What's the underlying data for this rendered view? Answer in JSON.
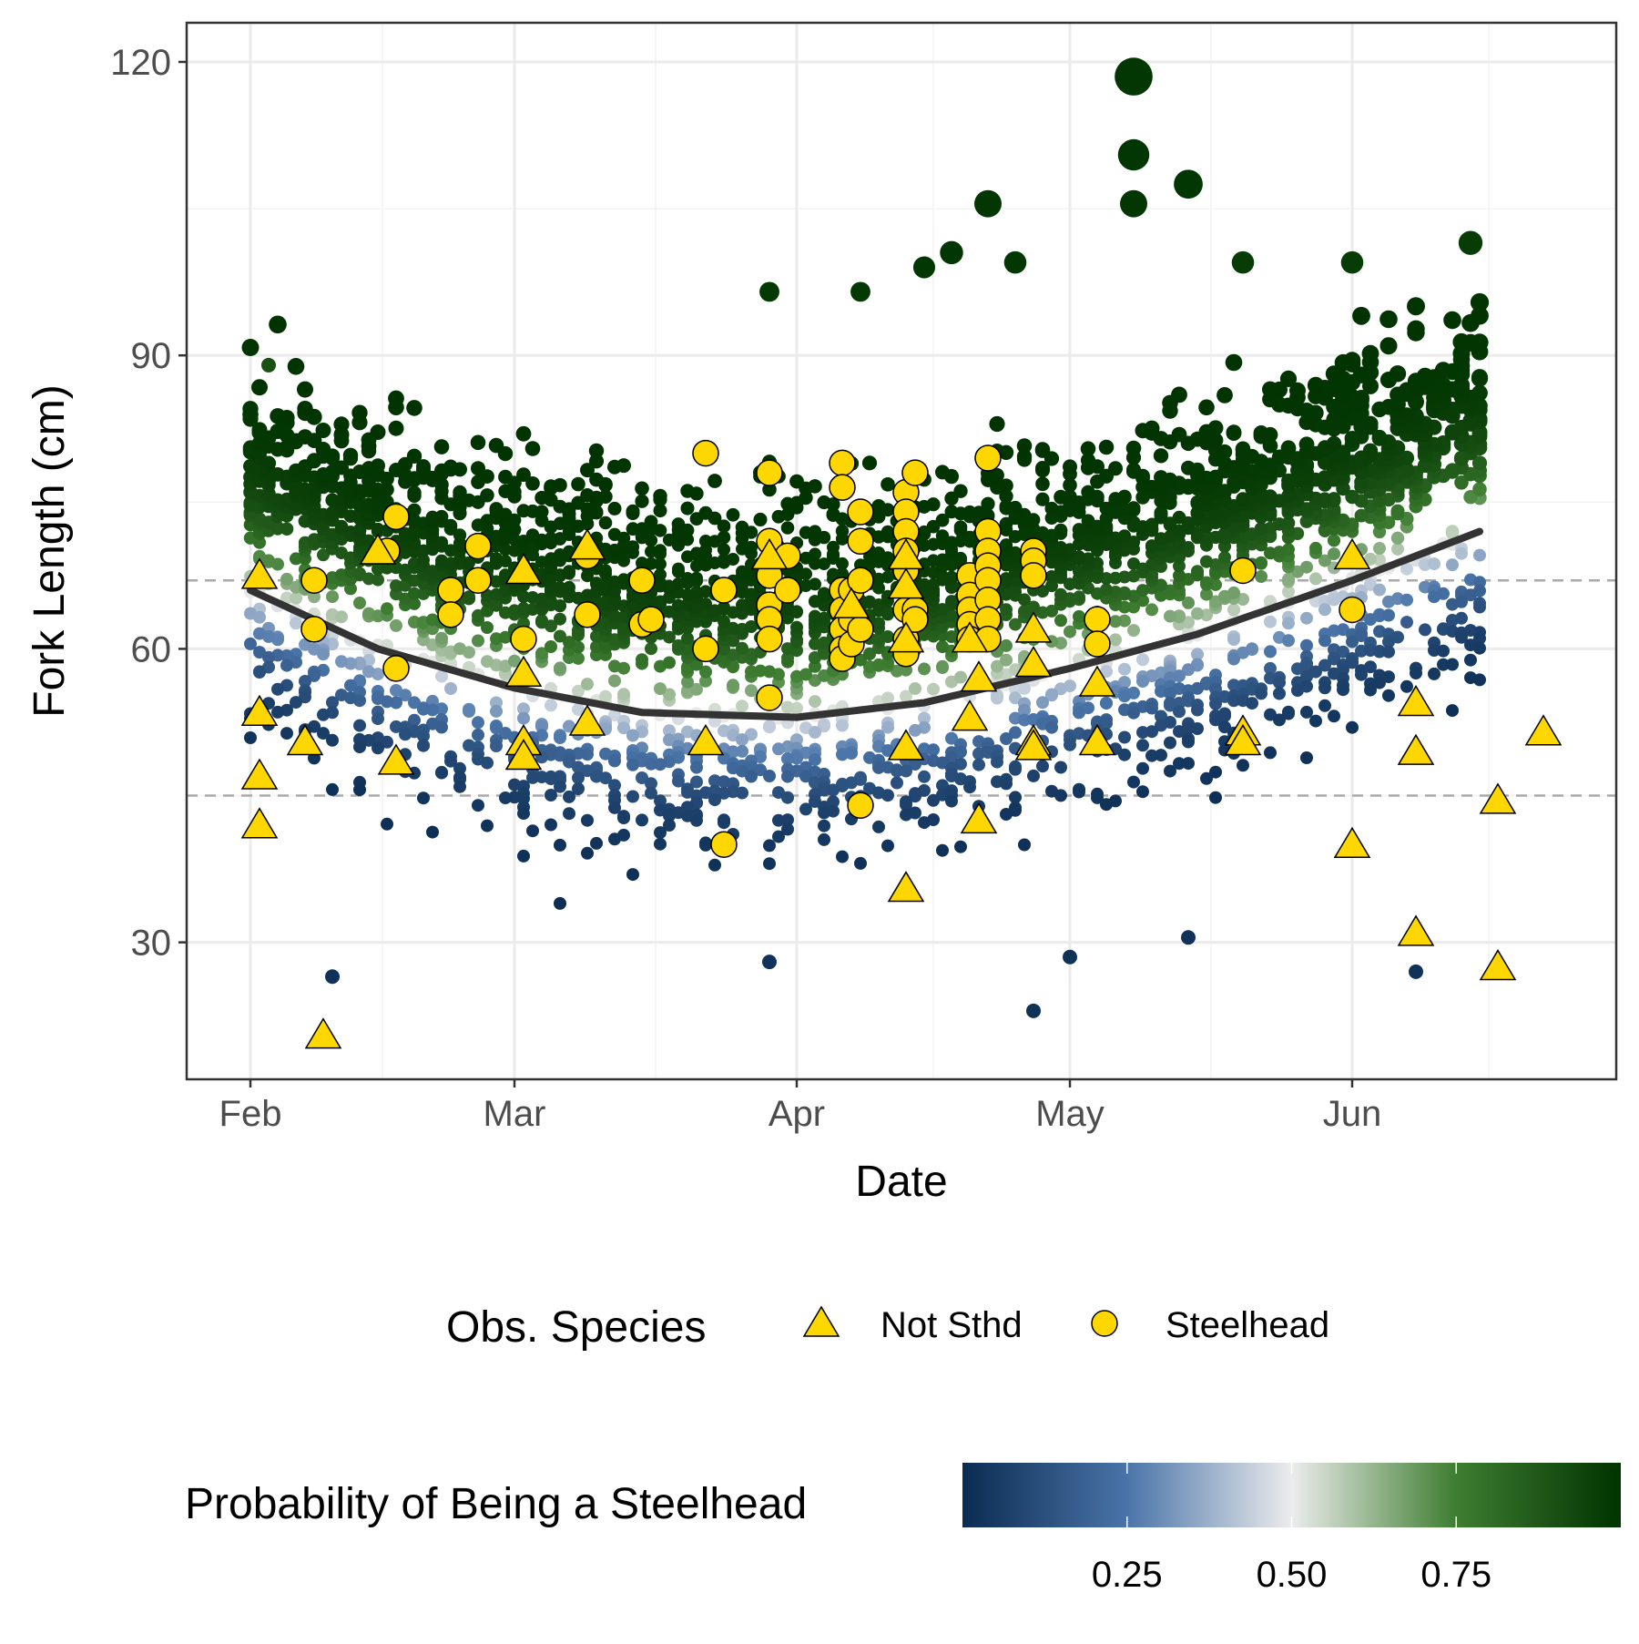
{
  "chart_data": {
    "type": "scatter",
    "title": "",
    "xlabel": "Date",
    "ylabel": "Fork Length (cm)",
    "x_axis": {
      "type": "date",
      "range": [
        "2020-01-25",
        "2020-06-30"
      ],
      "ticks": [
        {
          "value": "2020-02-01",
          "label": "Feb"
        },
        {
          "value": "2020-03-01",
          "label": "Mar"
        },
        {
          "value": "2020-04-01",
          "label": "Apr"
        },
        {
          "value": "2020-05-01",
          "label": "May"
        },
        {
          "value": "2020-06-01",
          "label": "Jun"
        }
      ]
    },
    "y_axis": {
      "range": [
        16,
        124
      ],
      "ticks": [
        30,
        60,
        90,
        120
      ]
    },
    "grid": true,
    "reference_lines": [
      {
        "y": 67,
        "style": "dashed",
        "color": "#aaaaaa"
      },
      {
        "y": 45,
        "style": "dashed",
        "color": "#aaaaaa"
      }
    ],
    "fitted_curve": {
      "color": "#333333",
      "x": [
        "2020-02-01",
        "2020-02-15",
        "2020-03-01",
        "2020-03-15",
        "2020-04-01",
        "2020-04-15",
        "2020-05-01",
        "2020-05-15",
        "2020-06-01",
        "2020-06-15"
      ],
      "y": [
        66,
        60,
        56,
        53.5,
        53,
        54.5,
        58,
        61.5,
        67,
        72
      ]
    },
    "background_points": {
      "description_series": "Predicted individuals",
      "color_scale": {
        "title": "Probability of Being a Steelhead",
        "stops": [
          {
            "value": 0.0,
            "color": "#0b2c52"
          },
          {
            "value": 0.25,
            "color": "#4a74a8"
          },
          {
            "value": 0.5,
            "color": "#ececec"
          },
          {
            "value": 0.75,
            "color": "#3e7d31"
          },
          {
            "value": 1.0,
            "color": "#003300"
          }
        ],
        "ticks": [
          0.25,
          0.5,
          0.75
        ],
        "tick_labels": [
          "0.25",
          "0.50",
          "0.75"
        ]
      },
      "samples": [
        {
          "date": "2020-05-08",
          "length": 118.5,
          "prob": 0.99
        },
        {
          "date": "2020-05-08",
          "length": 110.5,
          "prob": 0.99
        },
        {
          "date": "2020-05-08",
          "length": 105.5,
          "prob": 0.99
        },
        {
          "date": "2020-05-14",
          "length": 107.5,
          "prob": 0.99
        },
        {
          "date": "2020-04-22",
          "length": 105.5,
          "prob": 0.99
        },
        {
          "date": "2020-04-18",
          "length": 100.5,
          "prob": 0.99
        },
        {
          "date": "2020-04-15",
          "length": 99,
          "prob": 0.99
        },
        {
          "date": "2020-04-25",
          "length": 99.5,
          "prob": 0.99
        },
        {
          "date": "2020-04-08",
          "length": 96.5,
          "prob": 0.98
        },
        {
          "date": "2020-03-29",
          "length": 96.5,
          "prob": 0.98
        },
        {
          "date": "2020-06-01",
          "length": 99.5,
          "prob": 0.97
        },
        {
          "date": "2020-06-14",
          "length": 101.5,
          "prob": 0.97
        },
        {
          "date": "2020-05-20",
          "length": 99.5,
          "prob": 0.97
        },
        {
          "date": "2020-02-03",
          "length": 89,
          "prob": 0.9
        },
        {
          "date": "2020-02-10",
          "length": 26.5,
          "prob": 0.02
        },
        {
          "date": "2020-04-27",
          "length": 23,
          "prob": 0.02
        },
        {
          "date": "2020-06-08",
          "length": 27,
          "prob": 0.02
        },
        {
          "date": "2020-03-29",
          "length": 28,
          "prob": 0.02
        },
        {
          "date": "2020-05-01",
          "length": 28.5,
          "prob": 0.02
        },
        {
          "date": "2020-05-14",
          "length": 30.5,
          "prob": 0.02
        }
      ]
    },
    "legend": {
      "title": "Obs. Species",
      "position": "bottom",
      "entries": [
        {
          "label": "Not Sthd",
          "shape": "triangle",
          "fill": "#ffd700"
        },
        {
          "label": "Steelhead",
          "shape": "circle",
          "fill": "#ffd700"
        }
      ]
    },
    "series": [
      {
        "name": "Steelhead",
        "shape": "circle",
        "fill": "#ffd700",
        "points": [
          {
            "x": "2020-02-08",
            "y": 67
          },
          {
            "x": "2020-02-08",
            "y": 62
          },
          {
            "x": "2020-02-17",
            "y": 73.5
          },
          {
            "x": "2020-02-16",
            "y": 70
          },
          {
            "x": "2020-02-17",
            "y": 58
          },
          {
            "x": "2020-02-23",
            "y": 66
          },
          {
            "x": "2020-02-23",
            "y": 63.5
          },
          {
            "x": "2020-02-26",
            "y": 70.5
          },
          {
            "x": "2020-02-26",
            "y": 67
          },
          {
            "x": "2020-03-02",
            "y": 61
          },
          {
            "x": "2020-03-09",
            "y": 69.5
          },
          {
            "x": "2020-03-09",
            "y": 63.5
          },
          {
            "x": "2020-03-15",
            "y": 67
          },
          {
            "x": "2020-03-15",
            "y": 62.5
          },
          {
            "x": "2020-03-16",
            "y": 63
          },
          {
            "x": "2020-03-22",
            "y": 80
          },
          {
            "x": "2020-03-22",
            "y": 60
          },
          {
            "x": "2020-03-24",
            "y": 66
          },
          {
            "x": "2020-03-24",
            "y": 40
          },
          {
            "x": "2020-03-29",
            "y": 78
          },
          {
            "x": "2020-03-29",
            "y": 71
          },
          {
            "x": "2020-03-29",
            "y": 67.5
          },
          {
            "x": "2020-03-29",
            "y": 64.5
          },
          {
            "x": "2020-03-29",
            "y": 63
          },
          {
            "x": "2020-03-29",
            "y": 61
          },
          {
            "x": "2020-03-29",
            "y": 55
          },
          {
            "x": "2020-03-31",
            "y": 69.5
          },
          {
            "x": "2020-03-31",
            "y": 66
          },
          {
            "x": "2020-04-06",
            "y": 79
          },
          {
            "x": "2020-04-06",
            "y": 76.5
          },
          {
            "x": "2020-04-06",
            "y": 66
          },
          {
            "x": "2020-04-06",
            "y": 64
          },
          {
            "x": "2020-04-06",
            "y": 62
          },
          {
            "x": "2020-04-06",
            "y": 60
          },
          {
            "x": "2020-04-06",
            "y": 59
          },
          {
            "x": "2020-04-07",
            "y": 66
          },
          {
            "x": "2020-04-07",
            "y": 63
          },
          {
            "x": "2020-04-07",
            "y": 60.5
          },
          {
            "x": "2020-04-08",
            "y": 74
          },
          {
            "x": "2020-04-08",
            "y": 71
          },
          {
            "x": "2020-04-08",
            "y": 67
          },
          {
            "x": "2020-04-08",
            "y": 62
          },
          {
            "x": "2020-04-08",
            "y": 44
          },
          {
            "x": "2020-04-13",
            "y": 76
          },
          {
            "x": "2020-04-13",
            "y": 74
          },
          {
            "x": "2020-04-13",
            "y": 72
          },
          {
            "x": "2020-04-13",
            "y": 70
          },
          {
            "x": "2020-04-13",
            "y": 68
          },
          {
            "x": "2020-04-13",
            "y": 64
          },
          {
            "x": "2020-04-13",
            "y": 61
          },
          {
            "x": "2020-04-13",
            "y": 59.5
          },
          {
            "x": "2020-04-14",
            "y": 78
          },
          {
            "x": "2020-04-14",
            "y": 64
          },
          {
            "x": "2020-04-14",
            "y": 63
          },
          {
            "x": "2020-04-20",
            "y": 67.5
          },
          {
            "x": "2020-04-20",
            "y": 65.5
          },
          {
            "x": "2020-04-20",
            "y": 64
          },
          {
            "x": "2020-04-20",
            "y": 62.5
          },
          {
            "x": "2020-04-20",
            "y": 61
          },
          {
            "x": "2020-04-22",
            "y": 79.5
          },
          {
            "x": "2020-04-22",
            "y": 72
          },
          {
            "x": "2020-04-22",
            "y": 70
          },
          {
            "x": "2020-04-22",
            "y": 68.5
          },
          {
            "x": "2020-04-22",
            "y": 67
          },
          {
            "x": "2020-04-22",
            "y": 65
          },
          {
            "x": "2020-04-22",
            "y": 63
          },
          {
            "x": "2020-04-22",
            "y": 61
          },
          {
            "x": "2020-04-27",
            "y": 70
          },
          {
            "x": "2020-04-27",
            "y": 69
          },
          {
            "x": "2020-04-27",
            "y": 67.5
          },
          {
            "x": "2020-05-04",
            "y": 63
          },
          {
            "x": "2020-05-04",
            "y": 60.5
          },
          {
            "x": "2020-05-20",
            "y": 68
          },
          {
            "x": "2020-06-01",
            "y": 64
          }
        ]
      },
      {
        "name": "Not Sthd",
        "shape": "triangle",
        "fill": "#ffd700",
        "points": [
          {
            "x": "2020-02-02",
            "y": 67.5
          },
          {
            "x": "2020-02-02",
            "y": 53.5
          },
          {
            "x": "2020-02-02",
            "y": 47
          },
          {
            "x": "2020-02-02",
            "y": 42
          },
          {
            "x": "2020-02-07",
            "y": 50.5
          },
          {
            "x": "2020-02-09",
            "y": 20.5
          },
          {
            "x": "2020-02-15",
            "y": 70
          },
          {
            "x": "2020-02-17",
            "y": 48.5
          },
          {
            "x": "2020-03-02",
            "y": 68
          },
          {
            "x": "2020-03-02",
            "y": 57.5
          },
          {
            "x": "2020-03-02",
            "y": 50.5
          },
          {
            "x": "2020-03-02",
            "y": 49
          },
          {
            "x": "2020-03-09",
            "y": 70.5
          },
          {
            "x": "2020-03-09",
            "y": 52.5
          },
          {
            "x": "2020-03-22",
            "y": 50.5
          },
          {
            "x": "2020-03-29",
            "y": 69.5
          },
          {
            "x": "2020-04-07",
            "y": 64.5
          },
          {
            "x": "2020-04-13",
            "y": 69.5
          },
          {
            "x": "2020-04-13",
            "y": 66.5
          },
          {
            "x": "2020-04-13",
            "y": 61
          },
          {
            "x": "2020-04-13",
            "y": 50
          },
          {
            "x": "2020-04-13",
            "y": 35.5
          },
          {
            "x": "2020-04-20",
            "y": 61
          },
          {
            "x": "2020-04-20",
            "y": 53
          },
          {
            "x": "2020-04-21",
            "y": 57
          },
          {
            "x": "2020-04-21",
            "y": 42.5
          },
          {
            "x": "2020-04-27",
            "y": 62
          },
          {
            "x": "2020-04-27",
            "y": 58.5
          },
          {
            "x": "2020-04-27",
            "y": 50.5
          },
          {
            "x": "2020-04-27",
            "y": 50
          },
          {
            "x": "2020-05-04",
            "y": 56.5
          },
          {
            "x": "2020-05-04",
            "y": 50.5
          },
          {
            "x": "2020-05-20",
            "y": 51.5
          },
          {
            "x": "2020-05-20",
            "y": 50.5
          },
          {
            "x": "2020-06-01",
            "y": 69.5
          },
          {
            "x": "2020-06-01",
            "y": 40
          },
          {
            "x": "2020-06-08",
            "y": 54.5
          },
          {
            "x": "2020-06-08",
            "y": 49.5
          },
          {
            "x": "2020-06-08",
            "y": 31
          },
          {
            "x": "2020-06-17",
            "y": 44.5
          },
          {
            "x": "2020-06-17",
            "y": 27.5
          },
          {
            "x": "2020-06-22",
            "y": 51.5
          }
        ]
      }
    ]
  }
}
